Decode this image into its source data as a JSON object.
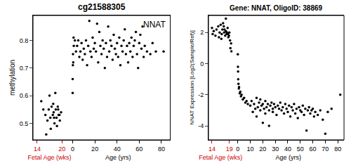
{
  "chart_data": [
    {
      "type": "scatter",
      "title": "cg21588305",
      "annotation": "NNAT",
      "ylabel": "methylation",
      "ylim": [
        0.44,
        0.89
      ],
      "yticks": [
        0.5,
        0.6,
        0.7,
        0.8
      ],
      "color": "#000000",
      "marker": "circle",
      "panels": [
        {
          "xlabel": "Fetal Age (wks)",
          "color": "#cc0000",
          "xlim": [
            13,
            21
          ],
          "xticks": [
            14,
            20
          ],
          "x": [
            15,
            15.5,
            16,
            16.5,
            16.8,
            17,
            17.2,
            17.5,
            17.8,
            18,
            18.2,
            18.5,
            18.7,
            19,
            19.2,
            19.5,
            19.8,
            17.3,
            18.4,
            19.1,
            16.2,
            17.9,
            18.8,
            19.4,
            18.1
          ],
          "values": [
            0.58,
            0.55,
            0.53,
            0.51,
            0.55,
            0.6,
            0.52,
            0.56,
            0.53,
            0.54,
            0.5,
            0.55,
            0.52,
            0.56,
            0.53,
            0.51,
            0.54,
            0.48,
            0.61,
            0.55,
            0.46,
            0.57,
            0.49,
            0.53,
            0.52
          ]
        },
        {
          "xlabel": "Age (yrs)",
          "color": "#000000",
          "xlim": [
            -6,
            88
          ],
          "xticks": [
            0,
            20,
            40,
            60,
            80
          ],
          "x": [
            0,
            0,
            0.2,
            0.3,
            0.5,
            0.8,
            1,
            2,
            3,
            4,
            5,
            6,
            7,
            8,
            9,
            10,
            11,
            12,
            13,
            14,
            15,
            16,
            17,
            18,
            19,
            20,
            21,
            22,
            23,
            24,
            25,
            26,
            27,
            28,
            29,
            30,
            31,
            32,
            33,
            34,
            35,
            36,
            37,
            38,
            39,
            40,
            41,
            42,
            43,
            44,
            45,
            46,
            47,
            48,
            49,
            50,
            51,
            52,
            53,
            54,
            55,
            56,
            57,
            58,
            59,
            60,
            61,
            62,
            63,
            64,
            65,
            67,
            70,
            72,
            75,
            82
          ],
          "values": [
            0.61,
            0.66,
            0.71,
            0.75,
            0.72,
            0.81,
            0.78,
            0.8,
            0.76,
            0.78,
            0.8,
            0.74,
            0.76,
            0.79,
            0.73,
            0.77,
            0.75,
            0.8,
            0.71,
            0.78,
            0.87,
            0.76,
            0.74,
            0.81,
            0.77,
            0.79,
            0.76,
            0.86,
            0.72,
            0.83,
            0.78,
            0.75,
            0.8,
            0.77,
            0.7,
            0.79,
            0.74,
            0.85,
            0.76,
            0.8,
            0.78,
            0.73,
            0.82,
            0.77,
            0.75,
            0.79,
            0.74,
            0.81,
            0.71,
            0.78,
            0.76,
            0.8,
            0.84,
            0.75,
            0.78,
            0.72,
            0.79,
            0.76,
            0.81,
            0.74,
            0.78,
            0.8,
            0.83,
            0.75,
            0.7,
            0.79,
            0.82,
            0.77,
            0.85,
            0.74,
            0.78,
            0.76,
            0.75,
            0.79,
            0.76,
            0.76
          ]
        }
      ]
    },
    {
      "type": "scatter",
      "title": "Gene: NNAT, OligoID: 38869",
      "ylabel": "NNAT Expression [Log2(Sample/Ref)]",
      "ylim": [
        -4.9,
        3.1
      ],
      "yticks": [
        -4,
        -2,
        0,
        2
      ],
      "color": "#000000",
      "marker": "circle",
      "panels": [
        {
          "xlabel": "Fetal Age (wks)",
          "color": "#cc0000",
          "xlim": [
            13,
            20
          ],
          "xticks": [
            14,
            19
          ],
          "x": [
            14,
            14.2,
            14.5,
            15,
            15.3,
            15.8,
            16,
            16.2,
            16.5,
            16.8,
            17,
            17.2,
            17.5,
            17.8,
            18,
            18,
            18.2,
            18.5,
            18.7,
            19,
            19.2,
            19.5,
            17.4,
            18.3,
            18.9,
            16.7,
            17.6,
            18.6,
            19.3,
            19.6
          ],
          "values": [
            2.3,
            1.9,
            2.1,
            1.8,
            2.2,
            2.4,
            1.7,
            2.0,
            2.5,
            1.9,
            2.2,
            2.6,
            2.0,
            1.8,
            2.1,
            2.9,
            1.9,
            2.3,
            1.7,
            2.0,
            1.5,
            1.3,
            2.4,
            2.0,
            1.8,
            1.6,
            2.2,
            1.9,
            1.0,
            0.8
          ]
        },
        {
          "xlabel": "Age (yrs)",
          "color": "#000000",
          "xlim": [
            -4,
            85
          ],
          "xticks": [
            0,
            10,
            20,
            30,
            40,
            50,
            60,
            70,
            80
          ],
          "x": [
            0,
            0.1,
            0.2,
            0.3,
            0.5,
            0.8,
            1,
            1.5,
            2,
            2.5,
            3,
            4,
            5,
            6,
            7,
            8,
            10,
            11,
            12,
            13,
            14,
            15,
            15,
            16,
            17,
            18,
            18,
            19,
            20,
            20,
            21,
            22,
            22,
            23,
            24,
            25,
            25,
            26,
            27,
            28,
            28,
            29,
            30,
            31,
            32,
            33,
            34,
            35,
            36,
            37,
            38,
            39,
            40,
            41,
            42,
            43,
            44,
            45,
            46,
            47,
            48,
            49,
            50,
            51,
            52,
            53,
            54,
            55,
            56,
            57,
            58,
            59,
            60,
            61,
            62,
            64,
            66,
            68,
            70,
            72,
            75,
            82
          ],
          "values": [
            0.6,
            -0.2,
            -0.5,
            -1.0,
            -1.3,
            -1.6,
            -1.5,
            -1.9,
            -1.8,
            -2.1,
            -2.0,
            -2.3,
            -2.2,
            -2.5,
            -2.4,
            -2.6,
            -2.7,
            -2.4,
            -3.1,
            -2.6,
            -2.9,
            -2.2,
            -3.4,
            -2.8,
            -2.5,
            -3.0,
            -2.3,
            -2.7,
            -2.6,
            -3.8,
            -2.9,
            -2.4,
            -3.2,
            -2.8,
            -2.6,
            -3.0,
            -4.0,
            -2.7,
            -2.5,
            -3.1,
            -2.9,
            -2.6,
            -2.8,
            -3.3,
            -2.7,
            -2.9,
            -2.5,
            -3.0,
            -2.8,
            -3.2,
            -2.6,
            -2.9,
            -3.1,
            -2.7,
            -3.4,
            -2.8,
            -3.0,
            -2.6,
            -3.2,
            -2.9,
            -3.5,
            -2.8,
            -3.0,
            -3.1,
            -2.7,
            -3.3,
            -2.9,
            -4.3,
            -3.0,
            -2.8,
            -3.2,
            -3.0,
            -2.9,
            -3.4,
            -3.1,
            -3.3,
            -3.0,
            -3.6,
            -4.5,
            -3.1,
            -2.9,
            -2.0
          ]
        }
      ]
    }
  ]
}
